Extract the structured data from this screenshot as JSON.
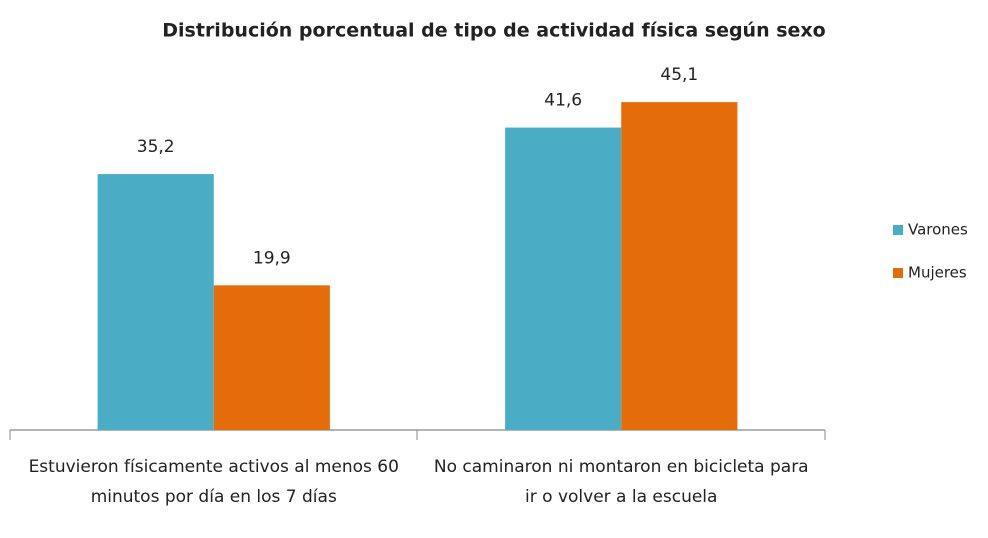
{
  "chart_data": {
    "type": "bar",
    "title": "Distribución porcentual de tipo de actividad física según sexo",
    "categories": [
      "Estuvieron físicamente activos al menos 60 minutos por día en los 7 días",
      "No caminaron ni montaron en bicicleta para ir o volver a la escuela"
    ],
    "series": [
      {
        "name": "Varones",
        "color": "#4bacc6",
        "values": [
          35.2,
          41.6
        ],
        "value_labels": [
          "35,2",
          "41,6"
        ]
      },
      {
        "name": "Mujeres",
        "color": "#e46c0a",
        "values": [
          19.9,
          45.1
        ],
        "value_labels": [
          "19,9",
          "45,1"
        ]
      }
    ],
    "legend": "right"
  }
}
